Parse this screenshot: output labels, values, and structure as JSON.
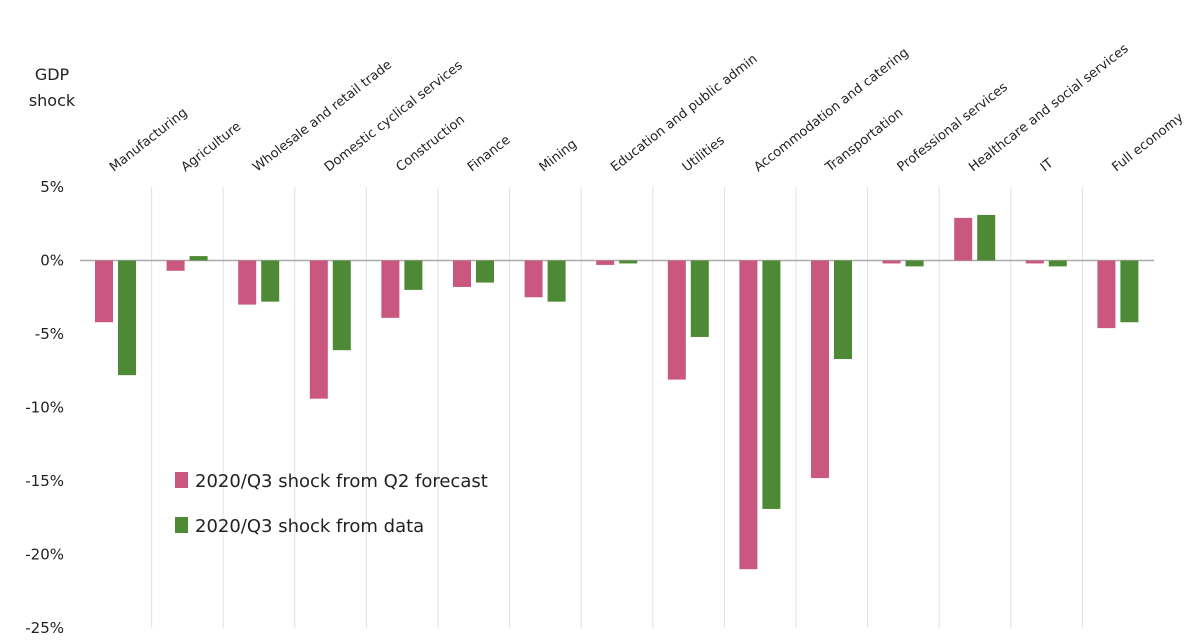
{
  "chart_data": {
    "type": "bar",
    "y_label": "GDP shock",
    "categories": [
      "Manufacturing",
      "Agriculture",
      "Wholesale and retail trade",
      "Domestic cyclical services",
      "Construction",
      "Finance",
      "Mining",
      "Education and public admin",
      "Utilities",
      "Accommodation and catering",
      "Transportation",
      "Professional services",
      "Healthcare and social services",
      "IT",
      "Full economy"
    ],
    "series": [
      {
        "name": "2020/Q3 shock from Q2 forecast",
        "color": "#c9577f",
        "values": [
          -4.2,
          -0.7,
          -3.0,
          -9.4,
          -3.9,
          -1.8,
          -2.5,
          -0.3,
          -8.1,
          -21.0,
          -14.8,
          -0.2,
          2.9,
          -0.2,
          -4.6
        ]
      },
      {
        "name": "2020/Q3 shock from data",
        "color": "#4e8a35",
        "values": [
          -7.8,
          0.3,
          -2.8,
          -6.1,
          -2.0,
          -1.5,
          -2.8,
          -0.2,
          -5.2,
          -16.9,
          -6.7,
          -0.4,
          3.1,
          -0.4,
          -4.2
        ]
      }
    ],
    "ylim": [
      -25,
      5
    ],
    "yticks": [
      {
        "value": 5,
        "label": "5%"
      },
      {
        "value": 0,
        "label": "0%"
      },
      {
        "value": -5,
        "label": "-5%"
      },
      {
        "value": -10,
        "label": "-10%"
      },
      {
        "value": -15,
        "label": "-15%"
      },
      {
        "value": -20,
        "label": "-20%"
      },
      {
        "value": -25,
        "label": "-25%"
      }
    ],
    "grid": true,
    "legend": "center left"
  }
}
